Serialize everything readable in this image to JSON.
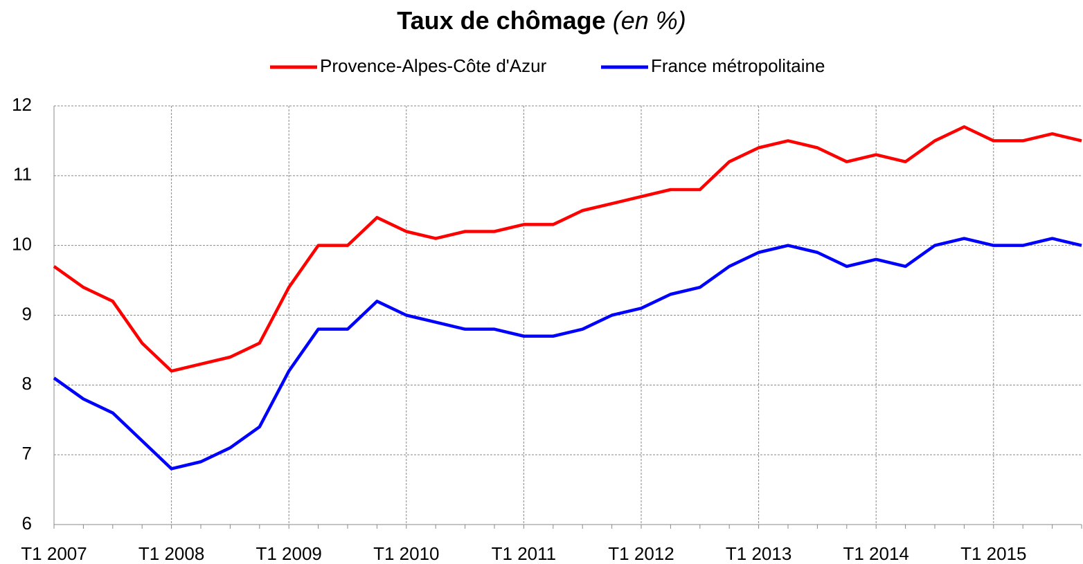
{
  "chart_data": {
    "type": "line",
    "title": "Taux de chômage",
    "subtitle": "(en %)",
    "categories": [
      "T1 2007",
      null,
      null,
      null,
      "T1 2008",
      null,
      null,
      null,
      "T1 2009",
      null,
      null,
      null,
      "T1 2010",
      null,
      null,
      null,
      "T1 2011",
      null,
      null,
      null,
      "T1 2012",
      null,
      null,
      null,
      "T1 2013",
      null,
      null,
      null,
      "T1 2014",
      null,
      null,
      null,
      "T1 2015",
      null,
      null,
      null
    ],
    "series": [
      {
        "name": "Provence-Alpes-Côte d'Azur",
        "color": "#ff0000",
        "values": [
          9.7,
          9.4,
          9.2,
          8.6,
          8.2,
          8.3,
          8.4,
          8.6,
          9.4,
          10.0,
          10.0,
          10.4,
          10.2,
          10.1,
          10.2,
          10.2,
          10.3,
          10.3,
          10.5,
          10.6,
          10.7,
          10.8,
          10.8,
          11.2,
          11.4,
          11.5,
          11.4,
          11.2,
          11.3,
          11.2,
          11.5,
          11.7,
          11.5,
          11.5,
          11.6,
          11.5
        ]
      },
      {
        "name": "France métropolitaine",
        "color": "#0000ff",
        "values": [
          8.1,
          7.8,
          7.6,
          7.2,
          6.8,
          6.9,
          7.1,
          7.4,
          8.2,
          8.8,
          8.8,
          9.2,
          9.0,
          8.9,
          8.8,
          8.8,
          8.7,
          8.7,
          8.8,
          9.0,
          9.1,
          9.3,
          9.4,
          9.7,
          9.9,
          10.0,
          9.9,
          9.7,
          9.8,
          9.7,
          10.0,
          10.1,
          10.0,
          10.0,
          10.1,
          10.0
        ]
      }
    ],
    "ylim": [
      6,
      12
    ],
    "yticks": [
      6,
      7,
      8,
      9,
      10,
      11,
      12
    ],
    "grid": true,
    "legend": "top"
  }
}
